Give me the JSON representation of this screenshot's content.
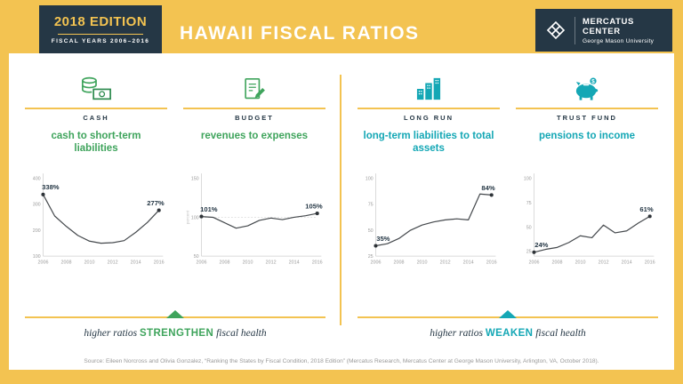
{
  "colors": {
    "gold": "#F3C351",
    "navy": "#253745",
    "green": "#3FA45C",
    "teal": "#14A7B5",
    "line": "#44484c"
  },
  "edition": {
    "title": "2018 EDITION",
    "subtitle": "FISCAL YEARS 2006–2016"
  },
  "header": {
    "title": "HAWAII FISCAL RATIOS"
  },
  "brand": {
    "name": "MERCATUS CENTER",
    "subname": "George Mason University",
    "icon": "mercatus-weave-icon"
  },
  "footers": {
    "left": {
      "pre": "higher ratios",
      "keyword": "STRENGTHEN",
      "post": "fiscal health"
    },
    "right": {
      "pre": "higher ratios",
      "keyword": "WEAKEN",
      "post": "fiscal health"
    }
  },
  "source": "Source: Eileen Norcross and Olivia Gonzalez, “Ranking the States by Fiscal Condition, 2018 Edition” (Mercatus Research, Mercatus Center at George Mason University, Arlington, VA, October 2018).",
  "chart_data": [
    {
      "type": "line",
      "panel": "CASH",
      "icon": "cash-icon",
      "title": "cash to short-term liabilities",
      "accent": "#3FA45C",
      "x": [
        2006,
        2007,
        2008,
        2009,
        2010,
        2011,
        2012,
        2013,
        2014,
        2015,
        2016
      ],
      "values": [
        338,
        255,
        215,
        180,
        158,
        150,
        152,
        160,
        192,
        230,
        277
      ],
      "ylim": [
        100,
        400
      ],
      "yticks": [
        100,
        200,
        300,
        400
      ],
      "xticks": [
        2006,
        2008,
        2010,
        2012,
        2014,
        2016
      ],
      "start_label": "338%",
      "end_label": "277%"
    },
    {
      "type": "line",
      "panel": "BUDGET",
      "icon": "budget-icon",
      "title": "revenues to expenses",
      "accent": "#3FA45C",
      "x": [
        2006,
        2007,
        2008,
        2009,
        2010,
        2011,
        2012,
        2013,
        2014,
        2015,
        2016
      ],
      "values": [
        101,
        100,
        93,
        86,
        89,
        96,
        99,
        97,
        100,
        102,
        105
      ],
      "ylim": [
        50,
        150
      ],
      "yticks": [
        50,
        100,
        150
      ],
      "xticks": [
        2006,
        2008,
        2010,
        2012,
        2014,
        2016
      ],
      "ylabel": "percent",
      "refline": 100,
      "start_label": "101%",
      "end_label": "105%"
    },
    {
      "type": "line",
      "panel": "LONG RUN",
      "icon": "long-run-icon",
      "title": "long-term liabilities to total assets",
      "accent": "#14A7B5",
      "x": [
        2006,
        2007,
        2008,
        2009,
        2010,
        2011,
        2012,
        2013,
        2014,
        2015,
        2016
      ],
      "values": [
        35,
        37,
        42,
        50,
        55,
        58,
        60,
        61,
        60,
        85,
        84
      ],
      "ylim": [
        25,
        100
      ],
      "yticks": [
        25,
        50,
        75,
        100
      ],
      "xticks": [
        2006,
        2008,
        2010,
        2012,
        2014,
        2016
      ],
      "start_label": "35%",
      "end_label": "84%"
    },
    {
      "type": "line",
      "panel": "TRUST FUND",
      "icon": "trust-fund-icon",
      "title": "pensions to income",
      "accent": "#14A7B5",
      "x": [
        2006,
        2007,
        2008,
        2009,
        2010,
        2011,
        2012,
        2013,
        2014,
        2015,
        2016
      ],
      "values": [
        24,
        27,
        29,
        34,
        41,
        39,
        52,
        44,
        46,
        54,
        61
      ],
      "ylim": [
        20,
        100
      ],
      "yticks": [
        25,
        50,
        75,
        100
      ],
      "xticks": [
        2006,
        2008,
        2010,
        2012,
        2014,
        2016
      ],
      "start_label": "24%",
      "end_label": "61%"
    }
  ]
}
